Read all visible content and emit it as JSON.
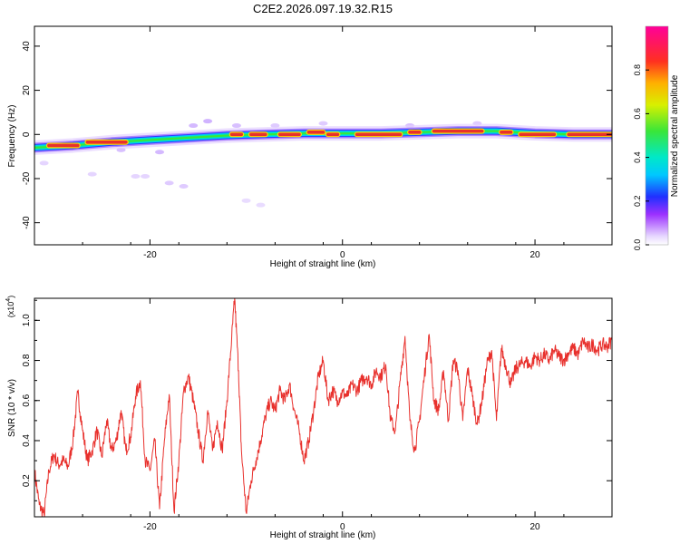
{
  "figure": {
    "title": "C2E2.2026.097.19.32.R15"
  },
  "colors": {
    "line": "#e8302c",
    "axis": "#000000",
    "colormap": [
      "#f2f2f2",
      "#dcc4ff",
      "#8a2be2",
      "#2030ff",
      "#00e5ff",
      "#39e639",
      "#ffe600",
      "#ff8c00",
      "#e8302c",
      "#ff0099"
    ]
  },
  "chart_data": [
    {
      "type": "heatmap",
      "xlabel": "Height of straight line (km)",
      "ylabel": "Frequency (Hz)",
      "xlim": [
        -32,
        28
      ],
      "ylim": [
        -50,
        49
      ],
      "xticks": [
        "-20",
        "0",
        "20"
      ],
      "xtick_values": [
        -20,
        0,
        20
      ],
      "yticks": [
        "-40",
        "-20",
        "0",
        "20",
        "40"
      ],
      "ytick_values": [
        -40,
        -20,
        0,
        20,
        40
      ],
      "colorbar": {
        "label": "Normalized spectral amplitude",
        "range": [
          0,
          1
        ],
        "ticks": [
          "0.0",
          "0.2",
          "0.4",
          "0.6",
          "0.8"
        ],
        "tick_values": [
          0,
          0.2,
          0.4,
          0.6,
          0.8
        ]
      },
      "ridge": [
        {
          "x": -32,
          "y": -6
        },
        {
          "x": -28,
          "y": -5
        },
        {
          "x": -24,
          "y": -3.5
        },
        {
          "x": -20,
          "y": -2.5
        },
        {
          "x": -16,
          "y": -1.5
        },
        {
          "x": -12,
          "y": -0.5
        },
        {
          "x": -8,
          "y": 0
        },
        {
          "x": -4,
          "y": 0.5
        },
        {
          "x": 0,
          "y": 0.5
        },
        {
          "x": 4,
          "y": 0.5
        },
        {
          "x": 8,
          "y": 1
        },
        {
          "x": 12,
          "y": 1.5
        },
        {
          "x": 16,
          "y": 1.5
        },
        {
          "x": 20,
          "y": 0.5
        },
        {
          "x": 24,
          "y": 0
        },
        {
          "x": 28,
          "y": 0
        }
      ],
      "hot_segments": [
        {
          "x0": -30.5,
          "x1": -27.5,
          "y": -5
        },
        {
          "x0": -26.5,
          "x1": -22.5,
          "y": -3.5
        },
        {
          "x0": -11.5,
          "x1": -10.5,
          "y": 0
        },
        {
          "x0": -9.5,
          "x1": -8,
          "y": 0
        },
        {
          "x0": -6.5,
          "x1": -4.5,
          "y": 0
        },
        {
          "x0": -3.5,
          "x1": -2,
          "y": 1
        },
        {
          "x0": -1.5,
          "x1": -0.5,
          "y": 0
        },
        {
          "x0": 1.5,
          "x1": 6,
          "y": 0
        },
        {
          "x0": 7,
          "x1": 8,
          "y": 1
        },
        {
          "x0": 9.5,
          "x1": 14.5,
          "y": 1.5
        },
        {
          "x0": 16.5,
          "x1": 17.5,
          "y": 1
        },
        {
          "x0": 18.5,
          "x1": 22,
          "y": 0
        },
        {
          "x0": 23.5,
          "x1": 28,
          "y": 0
        }
      ],
      "blobs": [
        {
          "x": -31,
          "y": -13,
          "a": 0.12
        },
        {
          "x": -26,
          "y": -18,
          "a": 0.12
        },
        {
          "x": -21.5,
          "y": -19,
          "a": 0.12
        },
        {
          "x": -20.5,
          "y": -19,
          "a": 0.12
        },
        {
          "x": -18,
          "y": -22,
          "a": 0.15
        },
        {
          "x": -16.5,
          "y": -23.5,
          "a": 0.15
        },
        {
          "x": -10,
          "y": -30,
          "a": 0.1
        },
        {
          "x": -8.5,
          "y": -32,
          "a": 0.1
        },
        {
          "x": -14,
          "y": 6,
          "a": 0.22
        },
        {
          "x": -15.5,
          "y": 4,
          "a": 0.2
        },
        {
          "x": -11,
          "y": 4,
          "a": 0.18
        },
        {
          "x": -7,
          "y": 4,
          "a": 0.15
        },
        {
          "x": -2,
          "y": 5,
          "a": 0.15
        },
        {
          "x": 7,
          "y": 4,
          "a": 0.18
        },
        {
          "x": 14,
          "y": 5,
          "a": 0.15
        },
        {
          "x": -23,
          "y": -7,
          "a": 0.18
        },
        {
          "x": -19,
          "y": -8,
          "a": 0.2
        }
      ]
    },
    {
      "type": "line",
      "xlabel": "Height of straight line (km)",
      "ylabel": "SNR (10 * v/v)",
      "y_multiplier_label": "(x10",
      "y_multiplier_exp": "4",
      "xlim": [
        -32,
        28
      ],
      "ylim": [
        0.02,
        1.11
      ],
      "xticks": [
        "-20",
        "0",
        "20"
      ],
      "xtick_values": [
        -20,
        0,
        20
      ],
      "yticks": [
        "0.2",
        "0.4",
        "0.6",
        "0.8",
        "1.0"
      ],
      "ytick_values": [
        0.2,
        0.4,
        0.6,
        0.8,
        1.0
      ],
      "series": [
        {
          "points": [
            [
              -32,
              0.25
            ],
            [
              -31.5,
              0.08
            ],
            [
              -31,
              0.03
            ],
            [
              -30.5,
              0.25
            ],
            [
              -30,
              0.33
            ],
            [
              -29.5,
              0.28
            ],
            [
              -29,
              0.3
            ],
            [
              -28.5,
              0.27
            ],
            [
              -28,
              0.4
            ],
            [
              -27.5,
              0.64
            ],
            [
              -27,
              0.45
            ],
            [
              -26.5,
              0.3
            ],
            [
              -26,
              0.35
            ],
            [
              -25.5,
              0.45
            ],
            [
              -25,
              0.32
            ],
            [
              -24.5,
              0.5
            ],
            [
              -24,
              0.35
            ],
            [
              -23.5,
              0.4
            ],
            [
              -23,
              0.55
            ],
            [
              -22.5,
              0.35
            ],
            [
              -22,
              0.42
            ],
            [
              -21.5,
              0.62
            ],
            [
              -21,
              0.7
            ],
            [
              -20.5,
              0.3
            ],
            [
              -20,
              0.25
            ],
            [
              -19.5,
              0.4
            ],
            [
              -19,
              0.06
            ],
            [
              -18.5,
              0.4
            ],
            [
              -18,
              0.63
            ],
            [
              -17.5,
              0.05
            ],
            [
              -17,
              0.3
            ],
            [
              -16.5,
              0.65
            ],
            [
              -16,
              0.72
            ],
            [
              -15.5,
              0.6
            ],
            [
              -15,
              0.45
            ],
            [
              -14.5,
              0.3
            ],
            [
              -14,
              0.55
            ],
            [
              -13.5,
              0.35
            ],
            [
              -13,
              0.5
            ],
            [
              -12.5,
              0.35
            ],
            [
              -12,
              0.6
            ],
            [
              -11.5,
              0.92
            ],
            [
              -11.2,
              1.11
            ],
            [
              -10.8,
              0.75
            ],
            [
              -10.5,
              0.35
            ],
            [
              -10,
              0.04
            ],
            [
              -9.5,
              0.2
            ],
            [
              -9,
              0.3
            ],
            [
              -8.5,
              0.4
            ],
            [
              -8,
              0.52
            ],
            [
              -7.5,
              0.6
            ],
            [
              -7,
              0.55
            ],
            [
              -6.5,
              0.65
            ],
            [
              -6,
              0.6
            ],
            [
              -5.5,
              0.68
            ],
            [
              -5,
              0.55
            ],
            [
              -4.5,
              0.45
            ],
            [
              -4,
              0.3
            ],
            [
              -3.5,
              0.4
            ],
            [
              -3,
              0.55
            ],
            [
              -2.5,
              0.72
            ],
            [
              -2,
              0.8
            ],
            [
              -1.5,
              0.6
            ],
            [
              -1,
              0.65
            ],
            [
              -0.5,
              0.6
            ],
            [
              0,
              0.64
            ],
            [
              0.5,
              0.62
            ],
            [
              1,
              0.68
            ],
            [
              1.5,
              0.65
            ],
            [
              2,
              0.7
            ],
            [
              2.5,
              0.72
            ],
            [
              3,
              0.68
            ],
            [
              3.5,
              0.75
            ],
            [
              4,
              0.72
            ],
            [
              4.5,
              0.78
            ],
            [
              5,
              0.5
            ],
            [
              5.5,
              0.45
            ],
            [
              6,
              0.7
            ],
            [
              6.5,
              0.92
            ],
            [
              7,
              0.5
            ],
            [
              7.5,
              0.35
            ],
            [
              8,
              0.5
            ],
            [
              8.5,
              0.72
            ],
            [
              9,
              0.93
            ],
            [
              9.5,
              0.6
            ],
            [
              10,
              0.55
            ],
            [
              10.5,
              0.75
            ],
            [
              11,
              0.5
            ],
            [
              11.5,
              0.8
            ],
            [
              12,
              0.75
            ],
            [
              12.5,
              0.5
            ],
            [
              13,
              0.76
            ],
            [
              13.5,
              0.62
            ],
            [
              14,
              0.48
            ],
            [
              14.5,
              0.6
            ],
            [
              15,
              0.78
            ],
            [
              15.5,
              0.85
            ],
            [
              16,
              0.5
            ],
            [
              16.5,
              0.86
            ],
            [
              17,
              0.77
            ],
            [
              17.5,
              0.68
            ],
            [
              18,
              0.76
            ],
            [
              18.5,
              0.78
            ],
            [
              19,
              0.8
            ],
            [
              19.5,
              0.77
            ],
            [
              20,
              0.82
            ],
            [
              20.5,
              0.8
            ],
            [
              21,
              0.83
            ],
            [
              21.5,
              0.8
            ],
            [
              22,
              0.85
            ],
            [
              22.5,
              0.82
            ],
            [
              23,
              0.8
            ],
            [
              23.5,
              0.84
            ],
            [
              24,
              0.86
            ],
            [
              24.5,
              0.83
            ],
            [
              25,
              0.9
            ],
            [
              25.5,
              0.86
            ],
            [
              26,
              0.88
            ],
            [
              26.5,
              0.85
            ],
            [
              27,
              0.88
            ],
            [
              27.5,
              0.87
            ],
            [
              28,
              0.9
            ]
          ]
        }
      ]
    }
  ]
}
